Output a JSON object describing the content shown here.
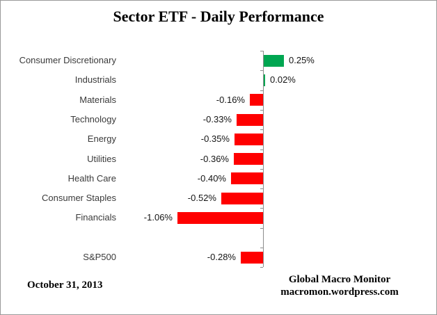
{
  "title": "Sector ETF - Daily Performance",
  "footer": {
    "date": "October 31, 2013",
    "source_line1": "Global Macro Monitor",
    "source_line2": "macromon.wordpress.com"
  },
  "colors": {
    "positive_bar": "#00A651",
    "negative_bar": "#FF0000",
    "axis": "#8C8C8C",
    "category_text": "#3A3A3A",
    "value_text": "#141414"
  },
  "chart_data": {
    "type": "bar",
    "orientation": "horizontal",
    "title": "Sector ETF - Daily Performance",
    "xlabel": "",
    "ylabel": "",
    "xlim": [
      -1.3,
      0.55
    ],
    "grid": false,
    "legend": "none",
    "value_format": "percent",
    "categories": [
      "Consumer Discretionary",
      "Industrials",
      "Materials",
      "Technology",
      "Energy",
      "Utilities",
      "Health Care",
      "Consumer Staples",
      "Financials",
      "",
      "S&P500"
    ],
    "values": [
      0.25,
      0.02,
      -0.16,
      -0.33,
      -0.35,
      -0.36,
      -0.4,
      -0.52,
      -1.06,
      null,
      -0.28
    ],
    "data_labels": [
      "0.25%",
      "0.02%",
      "-0.16%",
      "-0.33%",
      "-0.35%",
      "-0.36%",
      "-0.40%",
      "-0.52%",
      "-1.06%",
      "",
      "-0.28%"
    ]
  }
}
